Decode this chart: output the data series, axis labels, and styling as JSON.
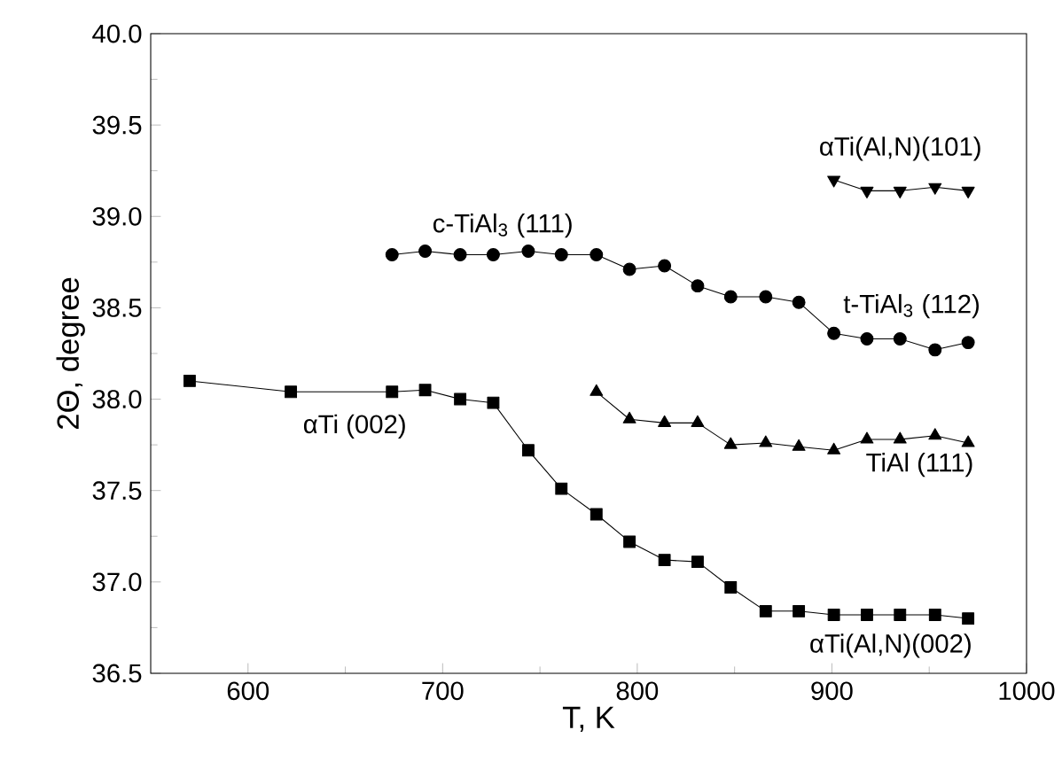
{
  "chart_data": {
    "type": "line",
    "xlabel": "T, K",
    "ylabel": "2Θ, degree",
    "xlim": [
      550,
      1000
    ],
    "ylim": [
      36.5,
      40
    ],
    "xticks": [
      600,
      700,
      800,
      900,
      1000
    ],
    "yticks": [
      36.5,
      {
        "value": 37,
        "label": "37.0"
      },
      37.5,
      {
        "value": 38,
        "label": "38.0"
      },
      38.5,
      {
        "value": 39,
        "label": "39.0"
      },
      39.5,
      {
        "value": 40,
        "label": "40.0"
      }
    ],
    "grid": false,
    "line_style": "solid",
    "series": [
      {
        "color": "#000000",
        "marker": "square",
        "x": [
          570,
          622,
          674,
          691,
          709,
          726,
          744,
          761,
          779,
          796,
          814,
          831,
          848,
          866,
          883,
          901,
          918,
          935,
          953,
          970
        ],
        "values": [
          38.1,
          38.04,
          38.04,
          38.05,
          38.0,
          37.98,
          37.72,
          37.51,
          37.37,
          37.22,
          37.12,
          37.11,
          36.97,
          36.84,
          36.84,
          36.82,
          36.82,
          36.82,
          36.82,
          36.8
        ]
      },
      {
        "color": "#000000",
        "marker": "circle",
        "x": [
          674,
          691,
          709,
          726,
          744,
          761,
          779,
          796,
          814,
          831,
          848,
          866,
          883,
          901,
          918,
          935,
          953,
          970
        ],
        "values": [
          38.79,
          38.81,
          38.79,
          38.79,
          38.81,
          38.79,
          38.79,
          38.71,
          38.73,
          38.62,
          38.56,
          38.56,
          38.53,
          38.36,
          38.33,
          38.33,
          38.27,
          38.31
        ]
      },
      {
        "color": "#000000",
        "marker": "triangle",
        "x": [
          779,
          796,
          814,
          831,
          848,
          866,
          883,
          901,
          918,
          935,
          953,
          970
        ],
        "values": [
          38.04,
          37.89,
          37.87,
          37.87,
          37.75,
          37.76,
          37.74,
          37.72,
          37.78,
          37.78,
          37.8,
          37.76
        ]
      },
      {
        "color": "#000000",
        "marker": "triangle down",
        "x": [
          901,
          918,
          935,
          953,
          970
        ],
        "values": [
          39.2,
          39.14,
          39.14,
          39.16,
          39.14
        ]
      }
    ],
    "annotations": [
      "αTi (002)",
      "c-TiAl$_{3}$ (111)",
      "t-TiAl$_{3}$ (112)",
      "TiAl (111)",
      "αTi(Al,N)(002)",
      "αTi(Al,N)(101)"
    ]
  }
}
